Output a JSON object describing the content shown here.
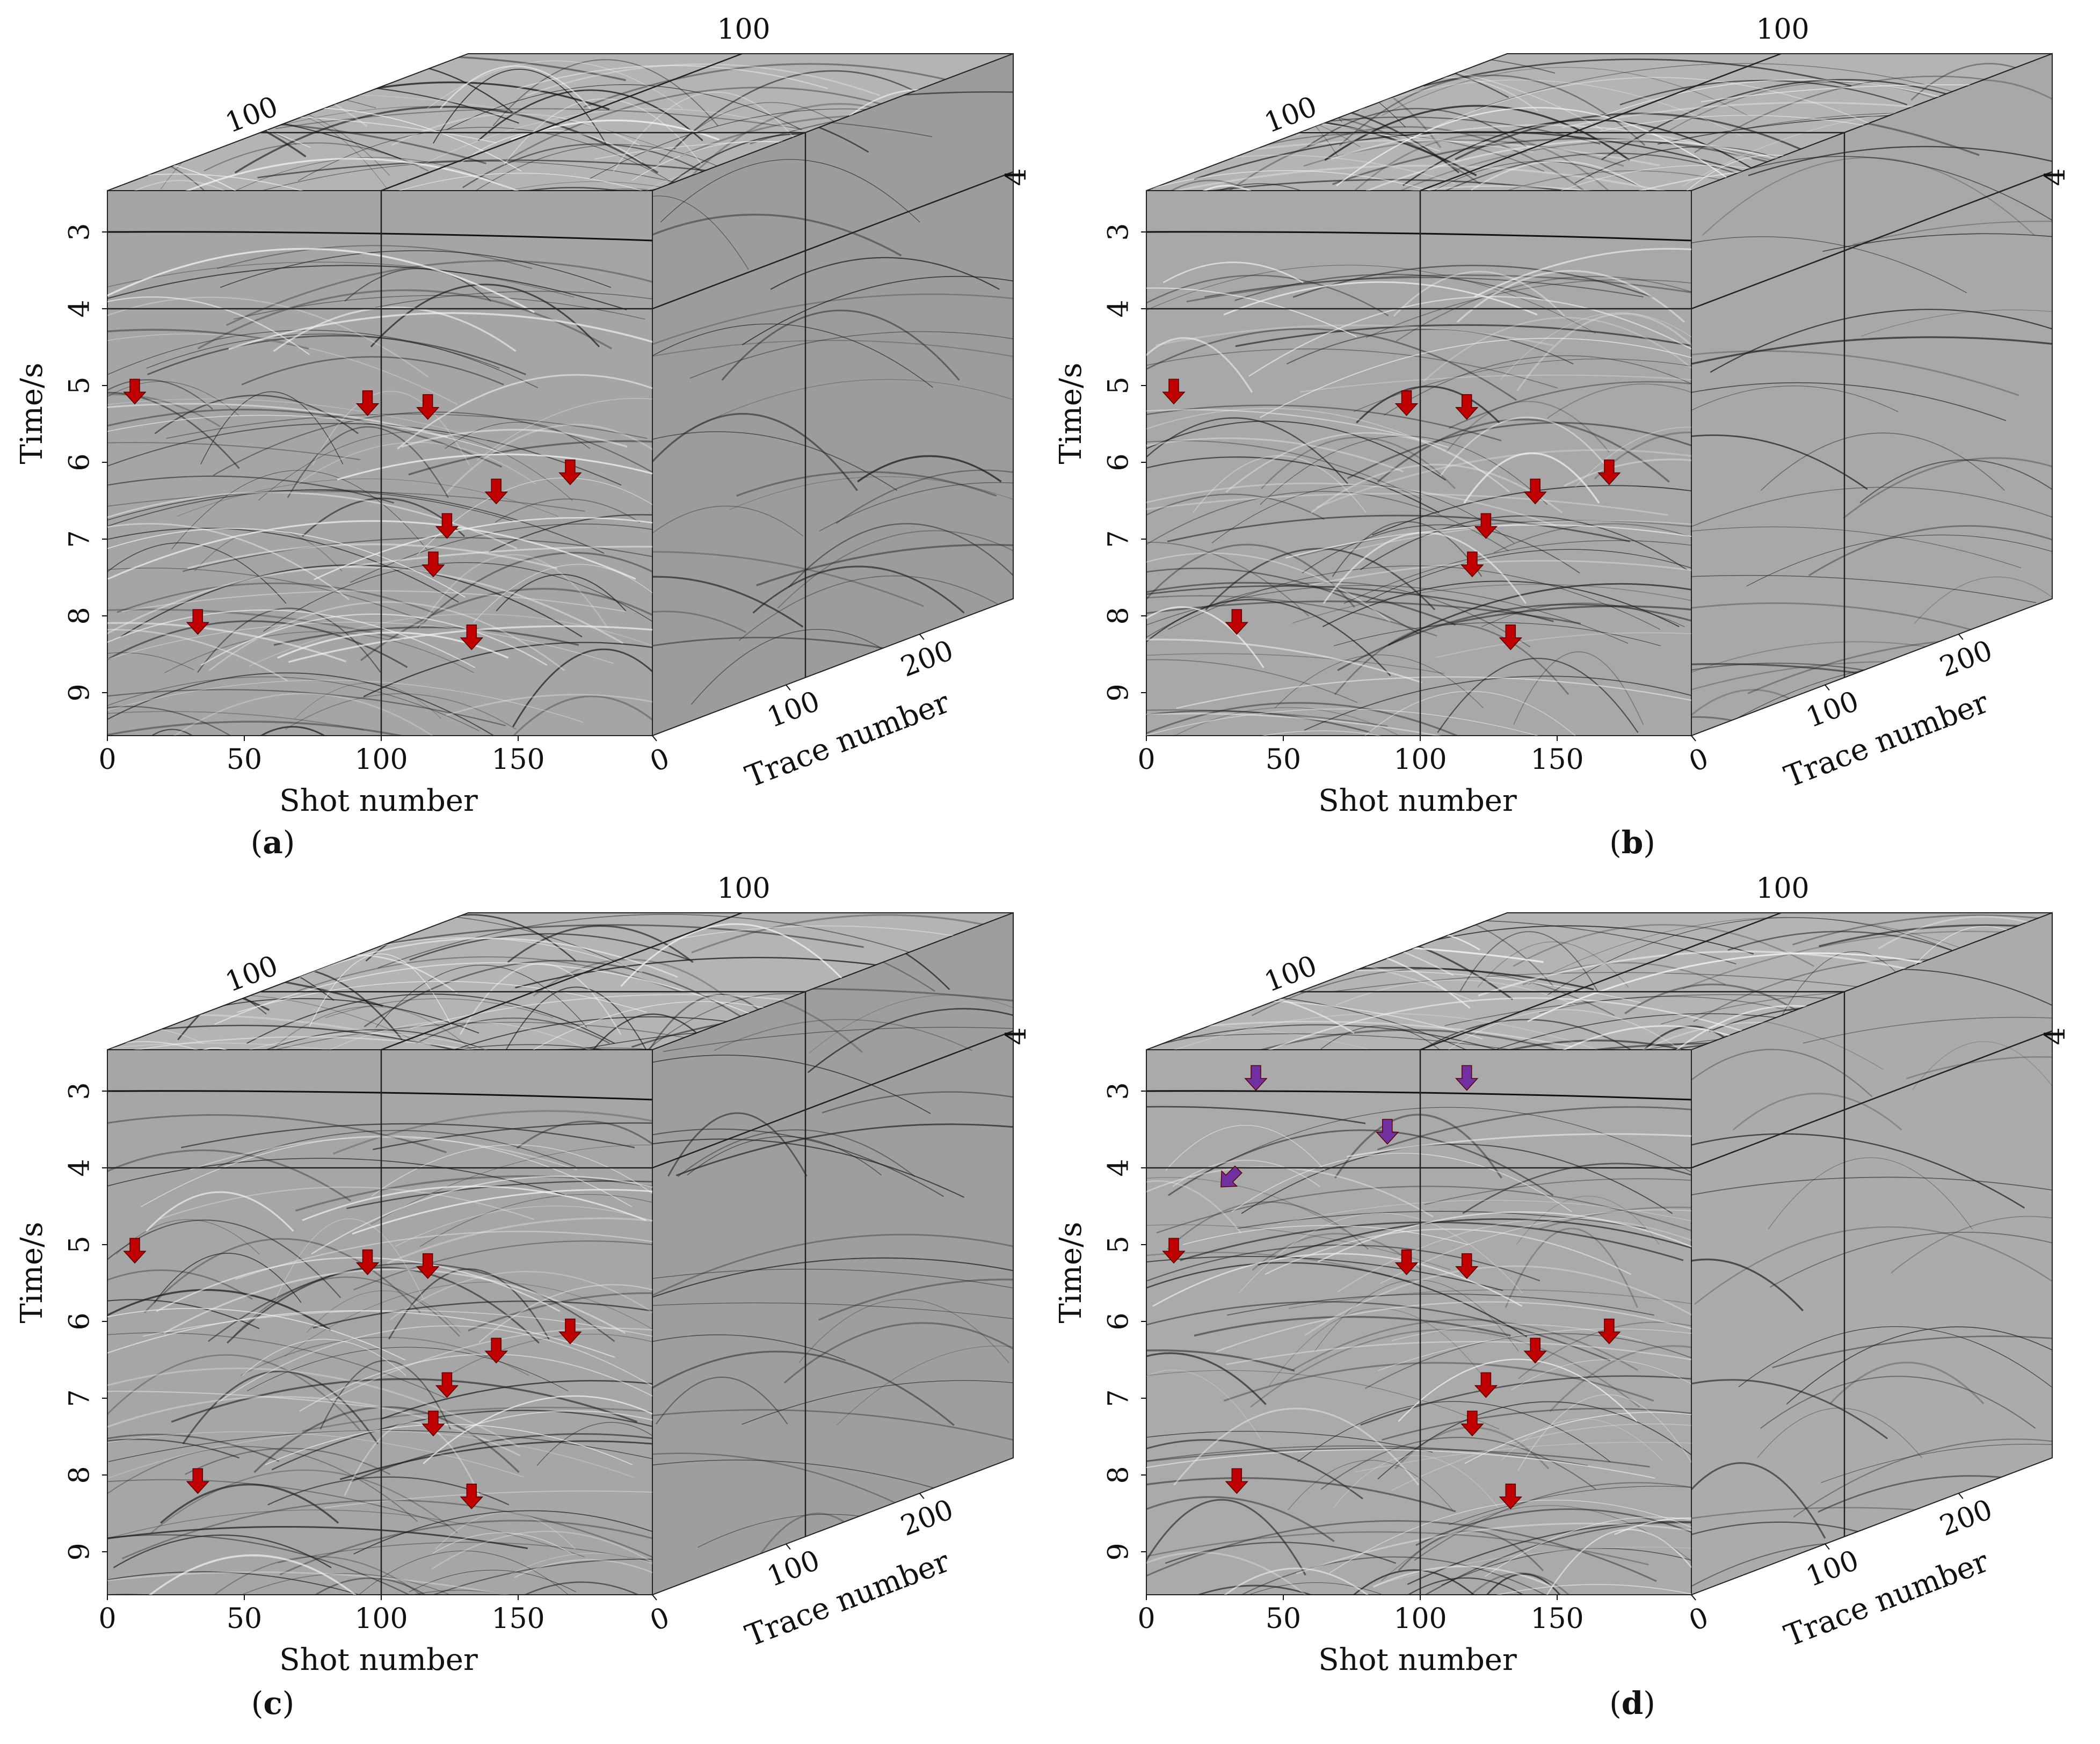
{
  "figure": {
    "panels": [
      {
        "id": "a",
        "caption_letter": "a",
        "has_purple": false,
        "right_fill": "#9c9c9c",
        "front_fill": "#a5a5a5"
      },
      {
        "id": "b",
        "caption_letter": "b",
        "has_purple": false,
        "right_fill": "#a8a8a8",
        "front_fill": "#a8a8a8"
      },
      {
        "id": "c",
        "caption_letter": "c",
        "has_purple": false,
        "right_fill": "#9e9e9e",
        "front_fill": "#a6a6a6"
      },
      {
        "id": "d",
        "caption_letter": "d",
        "has_purple": true,
        "right_fill": "#ababab",
        "front_fill": "#aaaaaa"
      }
    ],
    "axes": {
      "time_label": "Time/s",
      "time_ticks": [
        "3",
        "4",
        "5",
        "6",
        "7",
        "8",
        "9"
      ],
      "shot_label": "Shot number",
      "shot_ticks": [
        "0",
        "50",
        "100",
        "150"
      ],
      "trace_label": "Trace number",
      "trace_ticks": [
        "0",
        "100",
        "200"
      ],
      "top_left_label": "100",
      "top_right_label": "100",
      "side_label": "4"
    },
    "colors": {
      "red_arrow": "#c00000",
      "purple_arrow": "#7030a0",
      "frame": "#222222"
    }
  }
}
